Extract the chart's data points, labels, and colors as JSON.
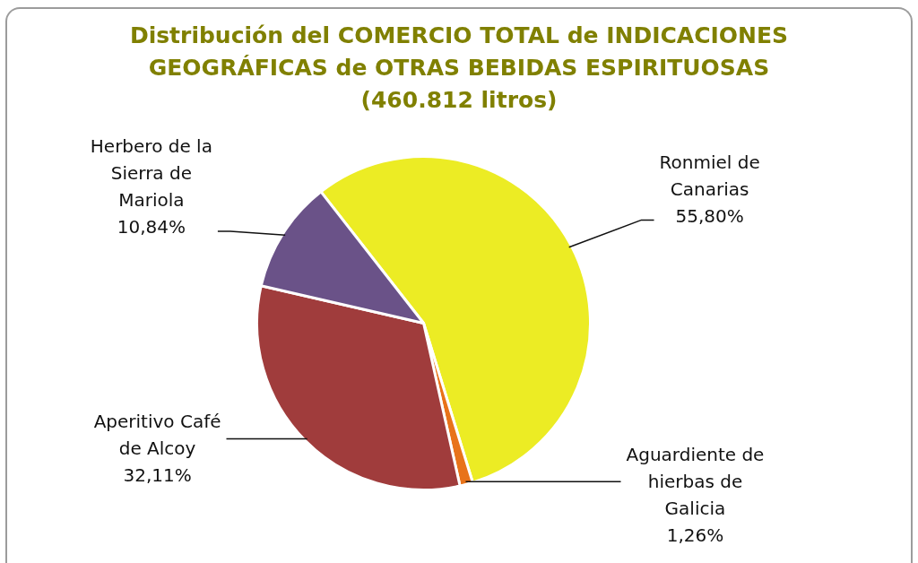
{
  "chart_data": {
    "type": "pie",
    "title": "Distribución del COMERCIO TOTAL de INDICACIONES GEOGRÁFICAS de OTRAS BEBIDAS ESPIRITUOSAS (460.812 litros)",
    "categories": [
      "Ronmiel de Canarias",
      "Aguardiente de hierbas de Galicia",
      "Aperitivo Café de Alcoy",
      "Herbero de la Sierra de Mariola"
    ],
    "values": [
      55.8,
      1.26,
      32.11,
      10.84
    ],
    "colors": [
      "#ecec24",
      "#e8731a",
      "#a03c3c",
      "#6a5288"
    ],
    "value_labels": [
      "55,80%",
      "1,26%",
      "32,11%",
      "10,84%"
    ]
  }
}
